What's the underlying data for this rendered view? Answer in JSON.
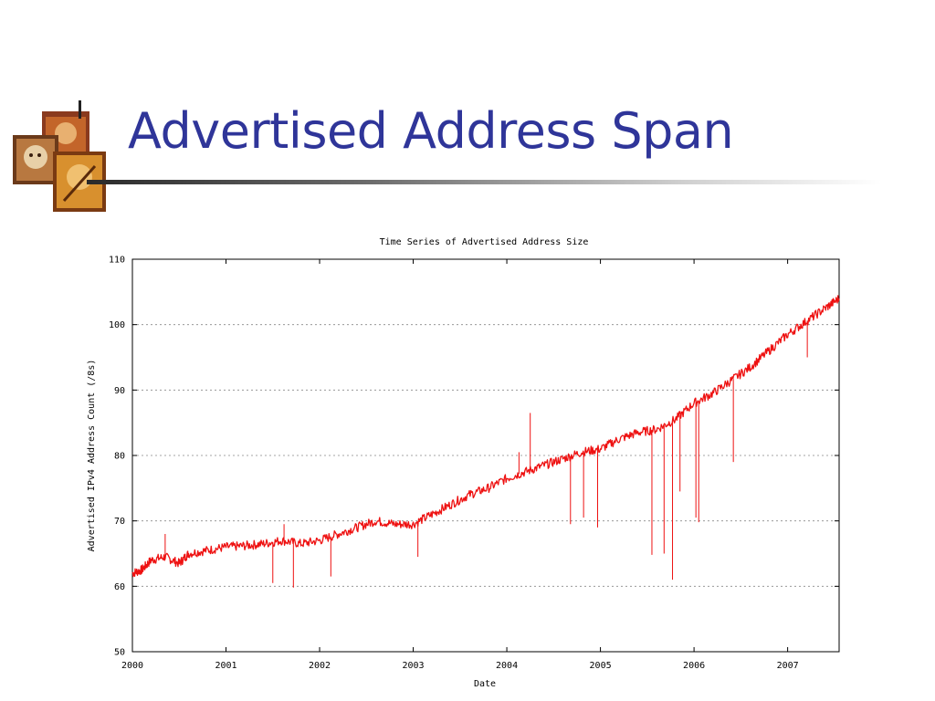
{
  "slide": {
    "title": "Advertised Address Span"
  },
  "colors": {
    "title": "#2f3599",
    "series": "#ee1111",
    "grid": "#888888"
  },
  "chart_data": {
    "type": "line",
    "title": "Time Series of Advertised Address Size",
    "xlabel": "Date",
    "ylabel": "Advertised IPv4 Address Count (/8s)",
    "xlim": [
      2000,
      2007.55
    ],
    "ylim": [
      50,
      110
    ],
    "x_ticks": [
      "2000",
      "2001",
      "2002",
      "2003",
      "2004",
      "2005",
      "2006",
      "2007"
    ],
    "y_ticks": [
      "50",
      "60",
      "70",
      "80",
      "90",
      "100",
      "110"
    ],
    "grid": "horizontal dotted",
    "series": [
      {
        "x": [
          2000.0,
          2000.1,
          2000.2,
          2000.35,
          2000.5,
          2000.6,
          2000.8,
          2001.0,
          2001.2,
          2001.4,
          2001.6,
          2001.8,
          2002.0,
          2002.2,
          2002.4,
          2002.6,
          2002.8,
          2003.0,
          2003.2,
          2003.4,
          2003.6,
          2003.8,
          2004.0,
          2004.2,
          2004.4,
          2004.6,
          2004.8,
          2005.0,
          2005.2,
          2005.4,
          2005.6,
          2005.8,
          2006.0,
          2006.2,
          2006.4,
          2006.6,
          2006.8,
          2007.0,
          2007.2,
          2007.4,
          2007.55
        ],
        "y": [
          62.0,
          62.5,
          64.0,
          64.5,
          63.5,
          65.0,
          65.5,
          66.0,
          66.2,
          66.5,
          67.0,
          66.5,
          67.0,
          68.0,
          69.0,
          70.0,
          69.5,
          69.5,
          71.0,
          72.5,
          74.0,
          75.0,
          76.5,
          77.5,
          78.5,
          79.5,
          80.5,
          81.0,
          82.5,
          83.5,
          84.0,
          85.5,
          88.0,
          89.5,
          91.5,
          93.5,
          96.0,
          98.5,
          100.5,
          102.5,
          104.0
        ]
      }
    ],
    "spikes": [
      {
        "x": 2000.35,
        "y": 68.0
      },
      {
        "x": 2001.5,
        "y": 60.5
      },
      {
        "x": 2001.62,
        "y": 69.5
      },
      {
        "x": 2001.72,
        "y": 59.8
      },
      {
        "x": 2002.12,
        "y": 61.5
      },
      {
        "x": 2003.05,
        "y": 64.5
      },
      {
        "x": 2004.13,
        "y": 80.5
      },
      {
        "x": 2004.25,
        "y": 86.5
      },
      {
        "x": 2004.68,
        "y": 69.5
      },
      {
        "x": 2004.82,
        "y": 70.5
      },
      {
        "x": 2004.97,
        "y": 69.0
      },
      {
        "x": 2005.55,
        "y": 64.8
      },
      {
        "x": 2005.68,
        "y": 65.0
      },
      {
        "x": 2005.77,
        "y": 61.0
      },
      {
        "x": 2005.85,
        "y": 74.5
      },
      {
        "x": 2006.02,
        "y": 70.5
      },
      {
        "x": 2006.05,
        "y": 69.8
      },
      {
        "x": 2006.42,
        "y": 79.0
      },
      {
        "x": 2007.21,
        "y": 95.0
      }
    ]
  }
}
